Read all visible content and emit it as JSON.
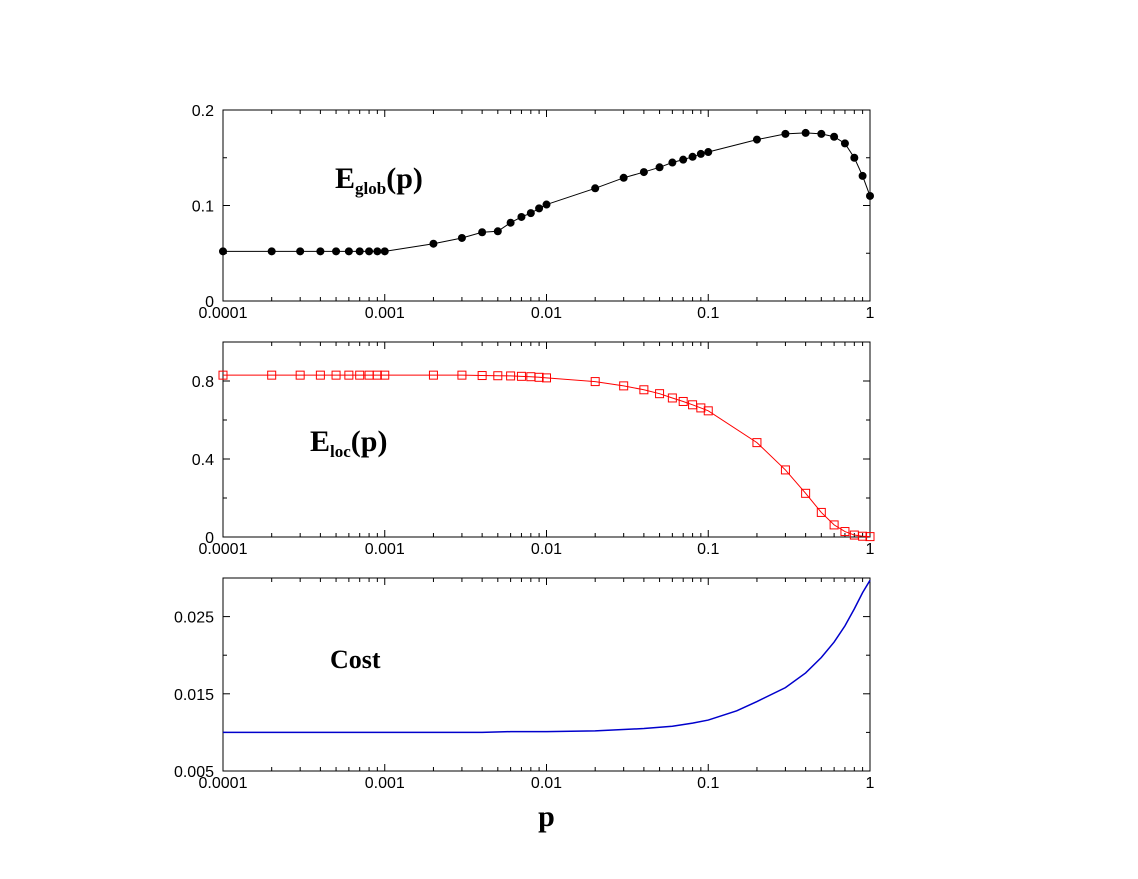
{
  "chart_data": [
    {
      "type": "line",
      "x_scale": "log",
      "xlim": [
        0.0001,
        1
      ],
      "ylim": [
        0,
        0.2
      ],
      "x_ticks": [
        "0.0001",
        "0.001",
        "0.01",
        "0.1",
        "1"
      ],
      "y_ticks": [
        "0",
        "0.1",
        "0.2"
      ],
      "y_tick_values": [
        0,
        0.1,
        0.2
      ],
      "annotation": {
        "main": "E",
        "sub": "glob",
        "suffix": "(p)"
      },
      "xlabel": "",
      "ylabel": "",
      "series": [
        {
          "marker": "filled-circle",
          "color": "#000000",
          "x": [
            0.0001,
            0.0002,
            0.0003,
            0.0004,
            0.0005,
            0.0006,
            0.0007,
            0.0008,
            0.0009,
            0.001,
            0.002,
            0.003,
            0.004,
            0.005,
            0.006,
            0.007,
            0.008,
            0.009,
            0.01,
            0.02,
            0.03,
            0.04,
            0.05,
            0.06,
            0.07,
            0.08,
            0.09,
            0.1,
            0.2,
            0.3,
            0.4,
            0.5,
            0.6,
            0.7,
            0.8,
            0.9,
            1.0
          ],
          "y": [
            0.052,
            0.052,
            0.052,
            0.052,
            0.052,
            0.052,
            0.052,
            0.052,
            0.052,
            0.052,
            0.06,
            0.066,
            0.072,
            0.073,
            0.082,
            0.088,
            0.092,
            0.097,
            0.101,
            0.118,
            0.129,
            0.135,
            0.14,
            0.145,
            0.148,
            0.151,
            0.154,
            0.156,
            0.169,
            0.175,
            0.176,
            0.175,
            0.172,
            0.165,
            0.15,
            0.131,
            0.11
          ]
        }
      ]
    },
    {
      "type": "line",
      "x_scale": "log",
      "xlim": [
        0.0001,
        1
      ],
      "ylim": [
        0,
        1.0
      ],
      "x_ticks": [
        "0.0001",
        "0.001",
        "0.01",
        "0.1",
        "1"
      ],
      "y_ticks": [
        "0",
        "0.4",
        "0.8"
      ],
      "y_tick_values": [
        0,
        0.4,
        0.8
      ],
      "annotation": {
        "main": "E",
        "sub": "loc",
        "suffix": "(p)"
      },
      "xlabel": "",
      "ylabel": "",
      "series": [
        {
          "marker": "open-square",
          "color": "#ff0000",
          "x": [
            0.0001,
            0.0002,
            0.0003,
            0.0004,
            0.0005,
            0.0006,
            0.0007,
            0.0008,
            0.0009,
            0.001,
            0.002,
            0.003,
            0.004,
            0.005,
            0.006,
            0.007,
            0.008,
            0.009,
            0.01,
            0.02,
            0.03,
            0.04,
            0.05,
            0.06,
            0.07,
            0.08,
            0.09,
            0.1,
            0.2,
            0.3,
            0.4,
            0.5,
            0.6,
            0.7,
            0.8,
            0.9,
            1.0
          ],
          "y": [
            0.83,
            0.83,
            0.83,
            0.83,
            0.83,
            0.83,
            0.83,
            0.83,
            0.83,
            0.83,
            0.83,
            0.83,
            0.828,
            0.827,
            0.826,
            0.824,
            0.822,
            0.819,
            0.816,
            0.797,
            0.775,
            0.755,
            0.735,
            0.713,
            0.695,
            0.678,
            0.662,
            0.647,
            0.484,
            0.344,
            0.224,
            0.126,
            0.062,
            0.028,
            0.01,
            0.004,
            0.002
          ]
        }
      ]
    },
    {
      "type": "line",
      "x_scale": "log",
      "xlim": [
        0.0001,
        1
      ],
      "ylim": [
        0.005,
        0.03
      ],
      "x_ticks": [
        "0.0001",
        "0.001",
        "0.01",
        "0.1",
        "1"
      ],
      "y_ticks": [
        "0.005",
        "0.015",
        "0.025"
      ],
      "y_tick_values": [
        0.005,
        0.015,
        0.025
      ],
      "annotation": {
        "main": "Cost",
        "sub": "",
        "suffix": ""
      },
      "xlabel": "p",
      "ylabel": "",
      "series": [
        {
          "marker": "none",
          "color": "#0000cc",
          "x": [
            0.0001,
            0.0002,
            0.0005,
            0.001,
            0.002,
            0.004,
            0.006,
            0.008,
            0.01,
            0.02,
            0.04,
            0.06,
            0.08,
            0.1,
            0.15,
            0.2,
            0.3,
            0.4,
            0.5,
            0.6,
            0.7,
            0.8,
            0.9,
            1.0
          ],
          "y": [
            0.01,
            0.01,
            0.01,
            0.01,
            0.01,
            0.01,
            0.0101,
            0.0101,
            0.0101,
            0.0102,
            0.0105,
            0.0108,
            0.0112,
            0.0116,
            0.0128,
            0.014,
            0.0158,
            0.0177,
            0.0197,
            0.0217,
            0.0238,
            0.026,
            0.0281,
            0.0297
          ]
        }
      ]
    }
  ]
}
